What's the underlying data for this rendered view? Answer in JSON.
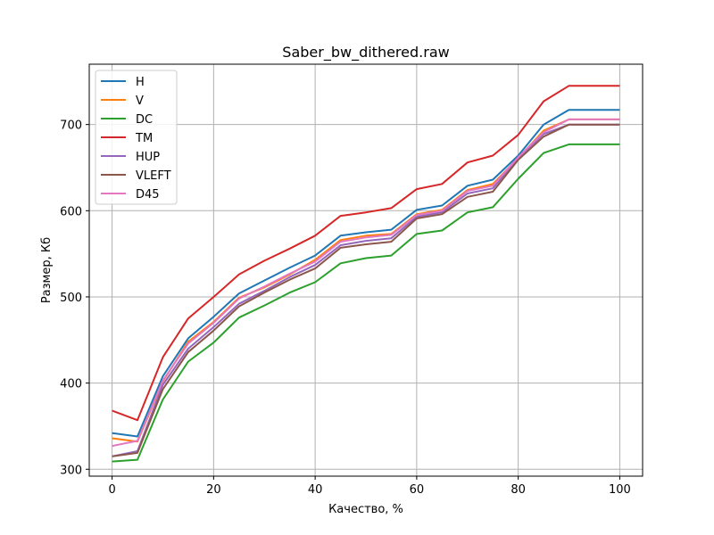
{
  "chart_data": {
    "type": "line",
    "title": "Saber_bw_dithered.raw",
    "xlabel": "Качество, %",
    "ylabel": "Размер, Кб",
    "xlim": [
      -4.5,
      104.5
    ],
    "ylim": [
      292,
      770
    ],
    "xticks": [
      0,
      20,
      40,
      60,
      80,
      100
    ],
    "yticks": [
      300,
      400,
      500,
      600,
      700
    ],
    "grid": true,
    "legend_position": "upper-left",
    "x": [
      0,
      5,
      10,
      15,
      20,
      25,
      30,
      35,
      40,
      45,
      50,
      55,
      60,
      65,
      70,
      75,
      80,
      85,
      90,
      95,
      100
    ],
    "series": [
      {
        "name": "H",
        "color": "#1f77b4",
        "values": [
          342,
          338,
          408,
          452,
          477,
          504,
          519,
          534,
          548,
          571,
          575,
          578,
          601,
          606,
          629,
          636,
          664,
          700,
          717,
          717,
          717
        ]
      },
      {
        "name": "V",
        "color": "#ff7f0e",
        "values": [
          336,
          332,
          402,
          448,
          471,
          499,
          511,
          526,
          543,
          566,
          571,
          573,
          596,
          601,
          624,
          631,
          661,
          693,
          706,
          706,
          706
        ]
      },
      {
        "name": "DC",
        "color": "#2ca02c",
        "values": [
          309,
          311,
          381,
          425,
          447,
          476,
          490,
          505,
          517,
          539,
          545,
          548,
          573,
          577,
          598,
          604,
          637,
          667,
          677,
          677,
          677
        ]
      },
      {
        "name": "TM",
        "color": "#d62728",
        "values": [
          368,
          357,
          430,
          475,
          500,
          526,
          542,
          556,
          571,
          594,
          598,
          603,
          625,
          631,
          656,
          664,
          688,
          727,
          745,
          745,
          745
        ]
      },
      {
        "name": "HUP",
        "color": "#9467bd",
        "values": [
          315,
          321,
          398,
          440,
          465,
          492,
          507,
          523,
          537,
          560,
          565,
          568,
          593,
          598,
          620,
          626,
          661,
          689,
          700,
          700,
          700
        ]
      },
      {
        "name": "VLEFT",
        "color": "#8c564b",
        "values": [
          315,
          319,
          393,
          436,
          461,
          489,
          505,
          520,
          533,
          557,
          561,
          564,
          591,
          596,
          616,
          622,
          659,
          686,
          700,
          700,
          700
        ]
      },
      {
        "name": "D45",
        "color": "#e377c2",
        "values": [
          327,
          333,
          403,
          446,
          470,
          498,
          512,
          527,
          541,
          564,
          569,
          572,
          595,
          600,
          623,
          629,
          662,
          691,
          706,
          706,
          706
        ]
      }
    ]
  }
}
